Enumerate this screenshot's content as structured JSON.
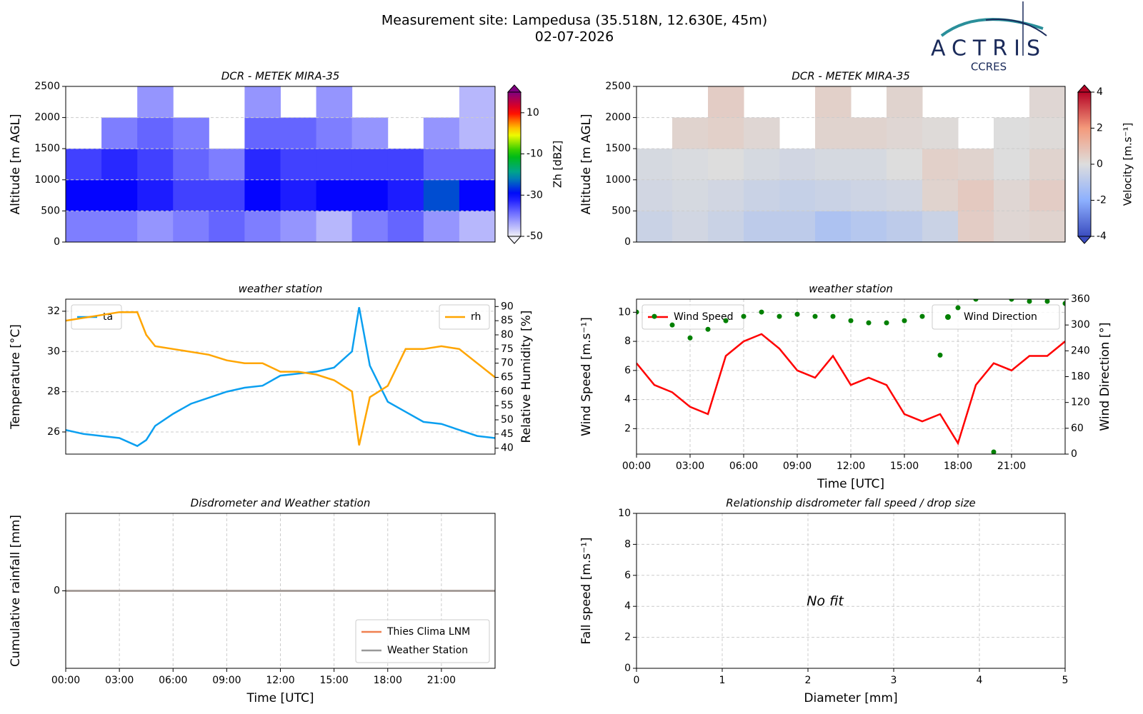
{
  "header": {
    "title": "Measurement site: Lampedusa (35.518N, 12.630E, 45m)",
    "date": "02-07-2026",
    "logo": "ACTRIS",
    "logo_sub": "CCRES"
  },
  "chart_data": [
    {
      "type": "heatmap",
      "title": "DCR - METEK MIRA-35",
      "ylabel": "Altitude [m AGL]",
      "xlim": [
        0,
        24
      ],
      "ylim": [
        0,
        2500
      ],
      "yticks": [
        0,
        500,
        1000,
        1500,
        2000,
        2500
      ],
      "grid": true,
      "x_edges": [
        0,
        2,
        4,
        6,
        8,
        10,
        12,
        14,
        16,
        18,
        20,
        22,
        24
      ],
      "y_edges": [
        0,
        500,
        1000,
        1500,
        2000,
        2500
      ],
      "z": [
        [
          -40,
          -40,
          -42,
          -40,
          -38,
          -40,
          -42,
          -45,
          -40,
          -38,
          -42,
          -45
        ],
        [
          -30,
          -30,
          -32,
          -35,
          -35,
          -30,
          -32,
          -30,
          -30,
          -32,
          -25,
          -30
        ],
        [
          -35,
          -33,
          -35,
          -38,
          -40,
          -33,
          -35,
          -35,
          -35,
          -35,
          -38,
          -38
        ],
        [
          null,
          -40,
          -38,
          -40,
          null,
          -38,
          -38,
          -40,
          -42,
          null,
          -42,
          -45
        ],
        [
          null,
          null,
          -42,
          null,
          null,
          -42,
          null,
          -42,
          null,
          null,
          null,
          -45
        ]
      ],
      "colorbar": {
        "label": "Zh [dBZ]",
        "lim": [
          -50,
          20
        ],
        "ticks": [
          10,
          -10,
          -30,
          -50
        ],
        "colormap": "jet"
      }
    },
    {
      "type": "heatmap",
      "title": "DCR - METEK MIRA-35",
      "ylabel": "Altitude [m AGL]",
      "xlim": [
        0,
        24
      ],
      "ylim": [
        0,
        2500
      ],
      "yticks": [
        0,
        500,
        1000,
        1500,
        2000,
        2500
      ],
      "grid": true,
      "x_edges": [
        0,
        2,
        4,
        6,
        8,
        10,
        12,
        14,
        16,
        18,
        20,
        22,
        24
      ],
      "y_edges": [
        0,
        500,
        1000,
        1500,
        2000,
        2500
      ],
      "z": [
        [
          -0.5,
          -0.3,
          -0.5,
          -0.8,
          -0.8,
          -1.2,
          -1.0,
          -0.8,
          -0.5,
          0.5,
          0.2,
          0.3
        ],
        [
          -0.3,
          -0.2,
          -0.3,
          -0.5,
          -0.6,
          -0.5,
          -0.4,
          -0.3,
          0.3,
          0.6,
          0.2,
          0.5
        ],
        [
          -0.2,
          -0.1,
          0,
          -0.2,
          -0.3,
          -0.2,
          -0.2,
          0,
          0.4,
          0.3,
          0,
          0.3
        ],
        [
          null,
          0.3,
          0.4,
          0.2,
          null,
          0.3,
          0.3,
          0.2,
          0.1,
          null,
          0,
          0.1
        ],
        [
          null,
          null,
          0.5,
          null,
          null,
          0.4,
          null,
          0.3,
          null,
          null,
          null,
          0.2
        ]
      ],
      "colorbar": {
        "label": "Velocity [m.s⁻¹]",
        "lim": [
          -4,
          4
        ],
        "ticks": [
          4,
          2,
          0,
          -2,
          -4
        ],
        "colormap": "coolwarm"
      }
    },
    {
      "type": "line",
      "title": "weather station",
      "ylabel": "Temperature [°C]",
      "y2label": "Relative Humidity [%]",
      "xlim": [
        0,
        24
      ],
      "ylim": [
        24.9,
        32.6
      ],
      "yticks": [
        26,
        28,
        30,
        32
      ],
      "y2lim": [
        37.9,
        92.6
      ],
      "y2ticks": [
        40,
        45,
        50,
        55,
        60,
        65,
        70,
        75,
        80,
        85,
        90
      ],
      "grid": true,
      "x": [
        0,
        1,
        2,
        3,
        4,
        4.5,
        5,
        6,
        7,
        8,
        9,
        10,
        11,
        12,
        13,
        14,
        15,
        16,
        16.4,
        17,
        18,
        19,
        20,
        21,
        22,
        23,
        24
      ],
      "series": [
        {
          "name": "ta",
          "color": "#0a9ff0",
          "legend": "upper left",
          "values": [
            26.1,
            25.9,
            25.8,
            25.7,
            25.3,
            25.6,
            26.3,
            26.9,
            27.4,
            27.7,
            28.0,
            28.2,
            28.3,
            28.8,
            28.9,
            29.0,
            29.2,
            30.0,
            32.2,
            29.3,
            27.5,
            27.0,
            26.5,
            26.4,
            26.1,
            25.8,
            25.7
          ]
        },
        {
          "name": "rh",
          "color": "#ffa500",
          "legend": "upper right",
          "axis": "y2",
          "values": [
            85,
            86,
            87,
            88,
            88,
            80,
            76,
            75,
            74,
            73,
            71,
            70,
            70,
            67,
            67,
            66,
            64,
            60,
            41,
            58,
            62,
            75,
            75,
            76,
            75,
            70,
            65
          ]
        }
      ]
    },
    {
      "type": "line",
      "title": "weather station",
      "ylabel": "Wind Speed [m.s⁻¹]",
      "y2label": "Wind Direction [°]",
      "xlabel": "Time [UTC]",
      "xlim": [
        0,
        24
      ],
      "ylim": [
        0.25,
        10.9
      ],
      "yticks": [
        2,
        4,
        6,
        8,
        10
      ],
      "y2lim": [
        0,
        360
      ],
      "y2ticks": [
        0,
        60,
        120,
        180,
        240,
        300,
        360
      ],
      "grid": true,
      "xticks": [
        {
          "value": 0,
          "label": "00:00"
        },
        {
          "value": 3,
          "label": "03:00"
        },
        {
          "value": 6,
          "label": "06:00"
        },
        {
          "value": 9,
          "label": "09:00"
        },
        {
          "value": 12,
          "label": "12:00"
        },
        {
          "value": 15,
          "label": "15:00"
        },
        {
          "value": 18,
          "label": "18:00"
        },
        {
          "value": 21,
          "label": "21:00"
        }
      ],
      "x": [
        0,
        1,
        2,
        3,
        4,
        5,
        6,
        7,
        8,
        9,
        10,
        11,
        12,
        13,
        14,
        15,
        16,
        17,
        18,
        19,
        20,
        21,
        22,
        23,
        24
      ],
      "series": [
        {
          "name": "Wind Speed",
          "color": "#ff0000",
          "legend": "upper left",
          "values": [
            6.5,
            5,
            4.5,
            3.5,
            3,
            7,
            8,
            8.5,
            7.5,
            6,
            5.5,
            7,
            5,
            5.5,
            5,
            3,
            2.5,
            3,
            1,
            5,
            6.5,
            6,
            7,
            7,
            8
          ]
        },
        {
          "name": "Wind Direction",
          "type": "scatter",
          "color": "#008000",
          "legend": "upper right",
          "axis": "y2",
          "values": [
            330,
            320,
            300,
            270,
            290,
            310,
            320,
            330,
            320,
            325,
            320,
            320,
            310,
            305,
            305,
            310,
            320,
            230,
            340,
            360,
            5,
            360,
            355,
            355,
            350
          ]
        }
      ]
    },
    {
      "type": "line",
      "title": "Disdrometer and Weather station",
      "ylabel": "Cumulative rainfall [mm]",
      "xlabel": "Time [UTC]",
      "xlim": [
        0,
        24
      ],
      "ylim": [
        -0.055,
        0.055
      ],
      "yticks": [
        0
      ],
      "grid": true,
      "legend": "lower right",
      "xticks": [
        {
          "value": 0,
          "label": "00:00"
        },
        {
          "value": 3,
          "label": "03:00"
        },
        {
          "value": 6,
          "label": "06:00"
        },
        {
          "value": 9,
          "label": "09:00"
        },
        {
          "value": 12,
          "label": "12:00"
        },
        {
          "value": 15,
          "label": "15:00"
        },
        {
          "value": 18,
          "label": "18:00"
        },
        {
          "value": 21,
          "label": "21:00"
        }
      ],
      "x": [
        0,
        24
      ],
      "series": [
        {
          "name": "Thies Clima LNM",
          "color": "#f08050",
          "values": [
            0,
            0
          ]
        },
        {
          "name": "Weather Station",
          "color": "#999999",
          "values": [
            0,
            0
          ]
        }
      ]
    },
    {
      "type": "scatter",
      "title": "Relationship disdrometer fall speed / drop size",
      "ylabel": "Fall speed [m.s⁻¹]",
      "xlabel": "Diameter [mm]",
      "xlim": [
        0,
        5
      ],
      "ylim": [
        0,
        10
      ],
      "xticks": [
        0,
        1,
        2,
        3,
        4,
        5
      ],
      "yticks": [
        0,
        2,
        4,
        6,
        8,
        10
      ],
      "grid": true,
      "annotation": "No fit"
    }
  ]
}
